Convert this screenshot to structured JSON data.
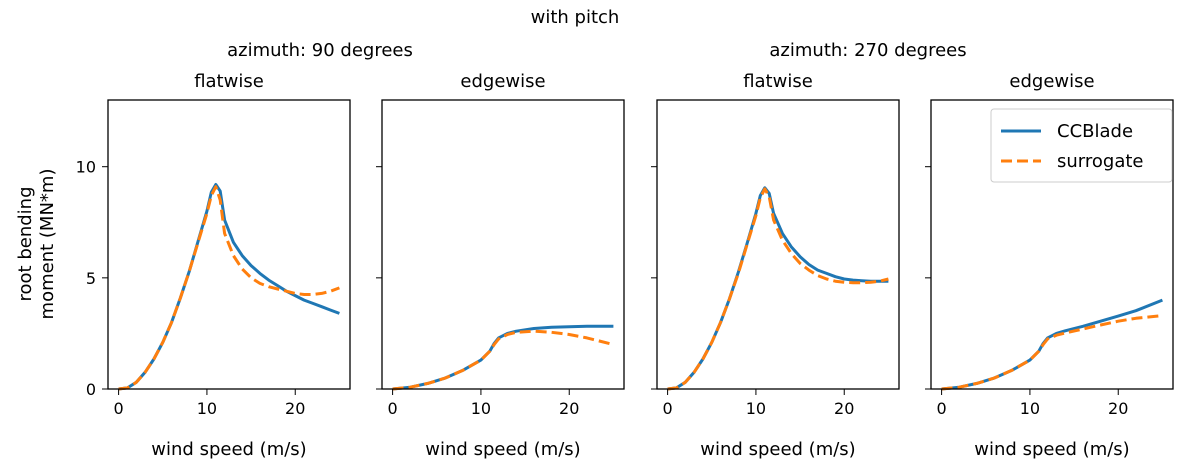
{
  "figure": {
    "title": "with pitch",
    "groups": [
      {
        "title": "azimuth: 90 degrees"
      },
      {
        "title": "azimuth: 270 degrees"
      }
    ],
    "ylabel_line1": "root bending",
    "ylabel_line2": "moment (MN*m)",
    "legend": [
      "CCBlade",
      "surrogate"
    ],
    "colors": {
      "CCBlade": "#1f77b4",
      "surrogate": "#ff7f0e"
    }
  },
  "chart_data": [
    {
      "type": "line",
      "title": "flatwise",
      "xlabel": "wind speed (m/s)",
      "ylabel": "root bending moment (MN*m)",
      "xlim": [
        -1.2,
        26.2
      ],
      "ylim": [
        0,
        13
      ],
      "xticks": [
        0,
        10,
        20
      ],
      "yticks": [
        0,
        5,
        10
      ],
      "series": [
        {
          "name": "CCBlade",
          "x": [
            0,
            1,
            2,
            3,
            4,
            5,
            6,
            7,
            8,
            9,
            10,
            10.5,
            11,
            11.5,
            12,
            13,
            14,
            15,
            16,
            17,
            18,
            19,
            20,
            21,
            22,
            23,
            24,
            25
          ],
          "y": [
            0,
            0.05,
            0.3,
            0.75,
            1.35,
            2.1,
            3.0,
            4.1,
            5.3,
            6.65,
            8.0,
            8.85,
            9.2,
            8.9,
            7.6,
            6.6,
            6.0,
            5.55,
            5.2,
            4.9,
            4.65,
            4.4,
            4.2,
            4.0,
            3.85,
            3.7,
            3.55,
            3.4
          ]
        },
        {
          "name": "surrogate",
          "x": [
            0,
            1,
            2,
            3,
            4,
            5,
            6,
            7,
            8,
            9,
            10,
            10.5,
            11,
            11.5,
            12,
            13,
            14,
            15,
            16,
            17,
            18,
            19,
            20,
            21,
            22,
            23,
            24,
            25
          ],
          "y": [
            0,
            0.05,
            0.3,
            0.75,
            1.35,
            2.1,
            3.0,
            4.1,
            5.3,
            6.6,
            7.9,
            8.7,
            9.1,
            8.5,
            7.0,
            6.0,
            5.4,
            5.0,
            4.75,
            4.6,
            4.5,
            4.4,
            4.3,
            4.25,
            4.25,
            4.3,
            4.4,
            4.55
          ]
        }
      ]
    },
    {
      "type": "line",
      "title": "edgewise",
      "xlabel": "wind speed (m/s)",
      "xlim": [
        -1.2,
        26.2
      ],
      "ylim": [
        0,
        13
      ],
      "xticks": [
        0,
        10,
        20
      ],
      "yticks": [
        0,
        5,
        10
      ],
      "series": [
        {
          "name": "CCBlade",
          "x": [
            0,
            2,
            4,
            6,
            8,
            10,
            11,
            11.5,
            12,
            13,
            14,
            16,
            18,
            20,
            22,
            25
          ],
          "y": [
            0,
            0.08,
            0.25,
            0.5,
            0.85,
            1.3,
            1.7,
            2.05,
            2.3,
            2.5,
            2.6,
            2.72,
            2.78,
            2.8,
            2.82,
            2.82
          ]
        },
        {
          "name": "surrogate",
          "x": [
            0,
            2,
            4,
            6,
            8,
            10,
            11,
            11.5,
            12,
            13,
            14,
            16,
            18,
            20,
            22,
            25
          ],
          "y": [
            0,
            0.08,
            0.25,
            0.5,
            0.85,
            1.3,
            1.7,
            2.0,
            2.25,
            2.45,
            2.55,
            2.6,
            2.55,
            2.45,
            2.3,
            2.0
          ]
        }
      ]
    },
    {
      "type": "line",
      "title": "flatwise",
      "xlabel": "wind speed (m/s)",
      "xlim": [
        -1.2,
        26.2
      ],
      "ylim": [
        0,
        13
      ],
      "xticks": [
        0,
        10,
        20
      ],
      "yticks": [
        0,
        5,
        10
      ],
      "series": [
        {
          "name": "CCBlade",
          "x": [
            0,
            1,
            2,
            3,
            4,
            5,
            6,
            7,
            8,
            9,
            10,
            10.5,
            11,
            11.5,
            12,
            13,
            14,
            15,
            16,
            17,
            18,
            19,
            20,
            21,
            22,
            23,
            24,
            25
          ],
          "y": [
            0,
            0.05,
            0.3,
            0.75,
            1.35,
            2.1,
            3.0,
            4.05,
            5.25,
            6.55,
            7.9,
            8.7,
            9.05,
            8.8,
            7.9,
            7.0,
            6.4,
            5.95,
            5.6,
            5.35,
            5.2,
            5.05,
            4.95,
            4.9,
            4.87,
            4.85,
            4.85,
            4.85
          ]
        },
        {
          "name": "surrogate",
          "x": [
            0,
            1,
            2,
            3,
            4,
            5,
            6,
            7,
            8,
            9,
            10,
            10.5,
            11,
            11.5,
            12,
            13,
            14,
            15,
            16,
            17,
            18,
            19,
            20,
            21,
            22,
            23,
            24,
            25
          ],
          "y": [
            0,
            0.05,
            0.3,
            0.75,
            1.35,
            2.1,
            3.0,
            4.05,
            5.2,
            6.5,
            7.8,
            8.6,
            9.0,
            8.65,
            7.6,
            6.7,
            6.1,
            5.65,
            5.35,
            5.1,
            4.95,
            4.85,
            4.8,
            4.78,
            4.78,
            4.8,
            4.85,
            4.95
          ]
        }
      ]
    },
    {
      "type": "line",
      "title": "edgewise",
      "xlabel": "wind speed (m/s)",
      "xlim": [
        -1.2,
        26.2
      ],
      "ylim": [
        0,
        13
      ],
      "xticks": [
        0,
        10,
        20
      ],
      "yticks": [
        0,
        5,
        10
      ],
      "legend_position": "upper right",
      "series": [
        {
          "name": "CCBlade",
          "x": [
            0,
            2,
            4,
            6,
            8,
            10,
            11,
            11.5,
            12,
            13,
            14,
            16,
            18,
            20,
            22,
            25
          ],
          "y": [
            0,
            0.08,
            0.25,
            0.5,
            0.85,
            1.3,
            1.7,
            2.05,
            2.3,
            2.5,
            2.62,
            2.82,
            3.05,
            3.28,
            3.52,
            4.0
          ]
        },
        {
          "name": "surrogate",
          "x": [
            0,
            2,
            4,
            6,
            8,
            10,
            11,
            11.5,
            12,
            13,
            14,
            16,
            18,
            20,
            22,
            25
          ],
          "y": [
            0,
            0.08,
            0.25,
            0.5,
            0.85,
            1.3,
            1.7,
            2.0,
            2.25,
            2.42,
            2.52,
            2.7,
            2.88,
            3.05,
            3.18,
            3.3
          ]
        }
      ]
    }
  ]
}
